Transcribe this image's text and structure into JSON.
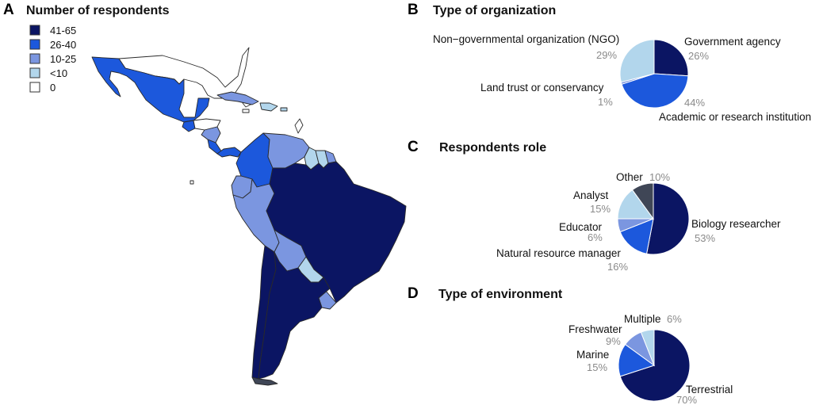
{
  "colors": {
    "c41_65": "#0b1563",
    "c26_40": "#1c58dc",
    "c10_25": "#7b96e0",
    "c_lt10": "#b2d6ec",
    "c_zero": "#ffffff",
    "other": "#3f4656",
    "map_border": "#2a2a2a"
  },
  "panel_a": {
    "letter": "A",
    "title": "Number of respondents",
    "legend": [
      {
        "label": "41-65",
        "color": "#0b1563"
      },
      {
        "label": "26-40",
        "color": "#1c58dc"
      },
      {
        "label": "10-25",
        "color": "#7b96e0"
      },
      {
        "label": "<10",
        "color": "#b2d6ec"
      },
      {
        "label": "0",
        "color": "#ffffff"
      }
    ]
  },
  "chart_data": [
    {
      "type": "pie",
      "panel": "B",
      "title": "Type of organization",
      "slices": [
        {
          "label": "Government agency",
          "value": 26,
          "pct_label": "26%",
          "color": "#0b1563"
        },
        {
          "label": "Academic or research institution",
          "value": 44,
          "pct_label": "44%",
          "color": "#1c58dc"
        },
        {
          "label": "Land trust or conservancy",
          "value": 1,
          "pct_label": "1%",
          "color": "#7b96e0"
        },
        {
          "label": "Non−governmental organization (NGO)",
          "value": 29,
          "pct_label": "29%",
          "color": "#b2d6ec"
        }
      ]
    },
    {
      "type": "pie",
      "panel": "C",
      "title": "Respondents role",
      "slices": [
        {
          "label": "Biology researcher",
          "value": 53,
          "pct_label": "53%",
          "color": "#0b1563"
        },
        {
          "label": "Natural resource manager",
          "value": 16,
          "pct_label": "16%",
          "color": "#1c58dc"
        },
        {
          "label": "Educator",
          "value": 6,
          "pct_label": "6%",
          "color": "#7b96e0"
        },
        {
          "label": "Analyst",
          "value": 15,
          "pct_label": "15%",
          "color": "#b2d6ec"
        },
        {
          "label": "Other",
          "value": 10,
          "pct_label": "10%",
          "color": "#3f4656"
        }
      ]
    },
    {
      "type": "pie",
      "panel": "D",
      "title": "Type of environment",
      "slices": [
        {
          "label": "Terrestrial",
          "value": 70,
          "pct_label": "70%",
          "color": "#0b1563"
        },
        {
          "label": "Marine",
          "value": 15,
          "pct_label": "15%",
          "color": "#1c58dc"
        },
        {
          "label": "Freshwater",
          "value": 9,
          "pct_label": "9%",
          "color": "#7b96e0"
        },
        {
          "label": "Multiple",
          "value": 6,
          "pct_label": "6%",
          "color": "#b2d6ec"
        }
      ]
    }
  ]
}
